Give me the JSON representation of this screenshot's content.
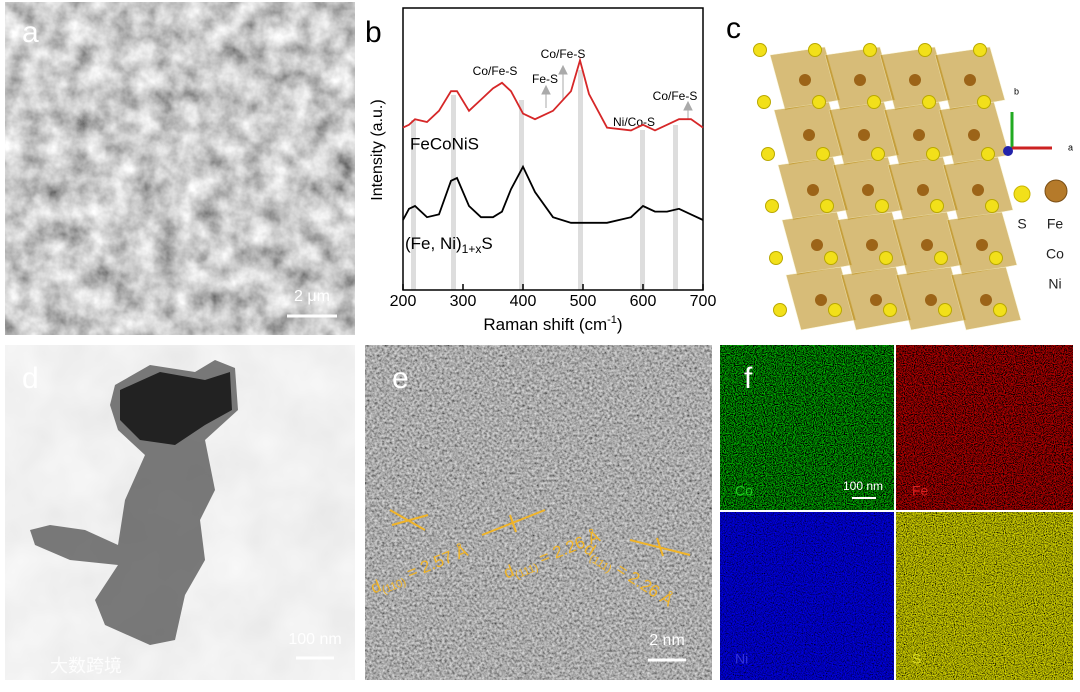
{
  "panels": {
    "a": {
      "label": "a",
      "scale_bar": "2 μm"
    },
    "b": {
      "label": "b"
    },
    "c": {
      "label": "c",
      "axes": [
        "b",
        "a"
      ],
      "legend": [
        "S",
        "Fe",
        "Co",
        "Ni"
      ]
    },
    "d": {
      "label": "d",
      "scale_bar": "100 nm"
    },
    "e": {
      "label": "e",
      "scale_bar": "2 nm",
      "spacings": [
        {
          "d": "d",
          "sub": "(110)",
          "text": " = 2.57 Å"
        },
        {
          "d": "d",
          "sub": "(111)",
          "text": " = 2.26 Å"
        },
        {
          "d": "d",
          "sub": "(111)",
          "text": " = 2.26 Å"
        }
      ]
    },
    "f": {
      "label": "f",
      "scale_bar": "100 nm",
      "maps": [
        "Co",
        "Fe",
        "Ni",
        "S"
      ]
    }
  },
  "chart_data": {
    "type": "line",
    "xlabel": {
      "main": "Raman shift (cm",
      "sup": "-1",
      "end": ")"
    },
    "ylabel": "Intensity (a.u.)",
    "x": [
      200,
      210,
      220,
      240,
      260,
      280,
      290,
      310,
      330,
      350,
      365,
      380,
      400,
      420,
      450,
      480,
      495,
      510,
      540,
      580,
      600,
      620,
      640,
      660,
      680,
      700
    ],
    "series": [
      {
        "name": "FeCoNiS",
        "color": "#d62728",
        "values": [
          58,
          59,
          61,
          60,
          64,
          71,
          71,
          64,
          68,
          72,
          74,
          71,
          63,
          61,
          64,
          71,
          82,
          70,
          58,
          57,
          59,
          57,
          59,
          61,
          61,
          58
        ]
      },
      {
        "name": {
          "main": "(Fe, Ni)",
          "sub": "1+x",
          "end": "S"
        },
        "color": "#000000",
        "values": [
          25,
          29,
          30,
          26,
          27,
          39,
          40,
          30,
          26,
          26,
          28,
          36,
          44,
          35,
          26,
          24,
          24,
          24,
          24,
          26,
          30,
          28,
          28,
          29,
          27,
          25
        ]
      }
    ],
    "xlim": [
      200,
      700
    ],
    "ylim": [
      0,
      100
    ],
    "xticks": [
      200,
      300,
      400,
      500,
      600,
      700
    ],
    "annotations": [
      "Co/Fe-S",
      "Fe-S",
      "Co/Fe-S",
      "Ni/Co-S",
      "Co/Fe-S"
    ]
  },
  "watermark": "大数跨境"
}
